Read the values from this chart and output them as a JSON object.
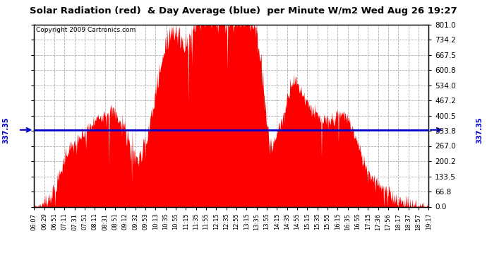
{
  "title": "Solar Radiation (red)  & Day Average (blue)  per Minute W/m2 Wed Aug 26 19:27",
  "copyright": "Copyright 2009 Cartronics.com",
  "day_average": 337.35,
  "ymin": 0.0,
  "ymax": 801.0,
  "yticks": [
    0.0,
    66.8,
    133.5,
    200.2,
    267.0,
    333.8,
    400.5,
    467.2,
    534.0,
    600.8,
    667.5,
    734.2,
    801.0
  ],
  "xtick_labels": [
    "06:07",
    "06:29",
    "06:51",
    "07:11",
    "07:31",
    "07:51",
    "08:11",
    "08:31",
    "08:51",
    "09:12",
    "09:32",
    "09:53",
    "10:13",
    "10:35",
    "10:55",
    "11:15",
    "11:35",
    "11:55",
    "12:15",
    "12:35",
    "12:55",
    "13:15",
    "13:35",
    "13:55",
    "14:15",
    "14:35",
    "14:55",
    "15:15",
    "15:35",
    "15:55",
    "16:15",
    "16:35",
    "16:55",
    "17:15",
    "17:36",
    "17:56",
    "18:17",
    "18:37",
    "18:57",
    "19:17"
  ],
  "bg_color": "#ffffff",
  "plot_bg_color": "#ffffff",
  "grid_color": "#999999",
  "area_color": "#ff0000",
  "line_color": "#0000cc",
  "title_bg": "#c8c8c8"
}
